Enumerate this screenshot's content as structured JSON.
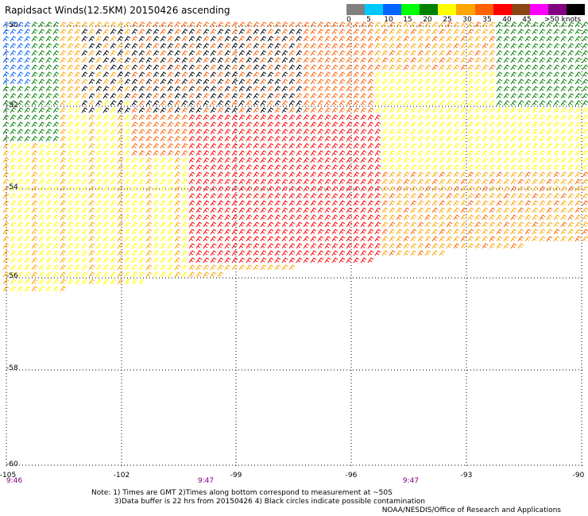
{
  "title": "Rapidsact Winds(12.5KM) 20150426 ascending",
  "legend": {
    "colors": [
      "#808080",
      "#00c8ff",
      "#0064ff",
      "#00ff00",
      "#008000",
      "#ffff00",
      "#ffa500",
      "#ff6000",
      "#ff0000",
      "#8b4513",
      "#ff00ff",
      "#800080",
      "#000000"
    ],
    "labels": [
      "0",
      "5",
      "10",
      "15",
      "20",
      "25",
      "30",
      "35",
      "40",
      "45",
      ">50 knots"
    ]
  },
  "lat_labels": [
    "-50",
    "-52",
    "-54",
    "-56",
    "-58",
    "-60"
  ],
  "lon_labels": [
    "-105",
    "-102",
    "-99",
    "-96",
    "-93",
    "-90"
  ],
  "time_labels": [
    "9:46",
    "9:47",
    "9:47"
  ],
  "notes": {
    "line1": "Note: 1) Times are GMT 2)Times along bottom correspond to measurement at ~50S",
    "line2": "3)Data buffer is 22 hrs from 20150426 4) Black circles indicate possible contamination"
  },
  "credit": "NOAA/NESDIS/Office of Research and Applications"
}
